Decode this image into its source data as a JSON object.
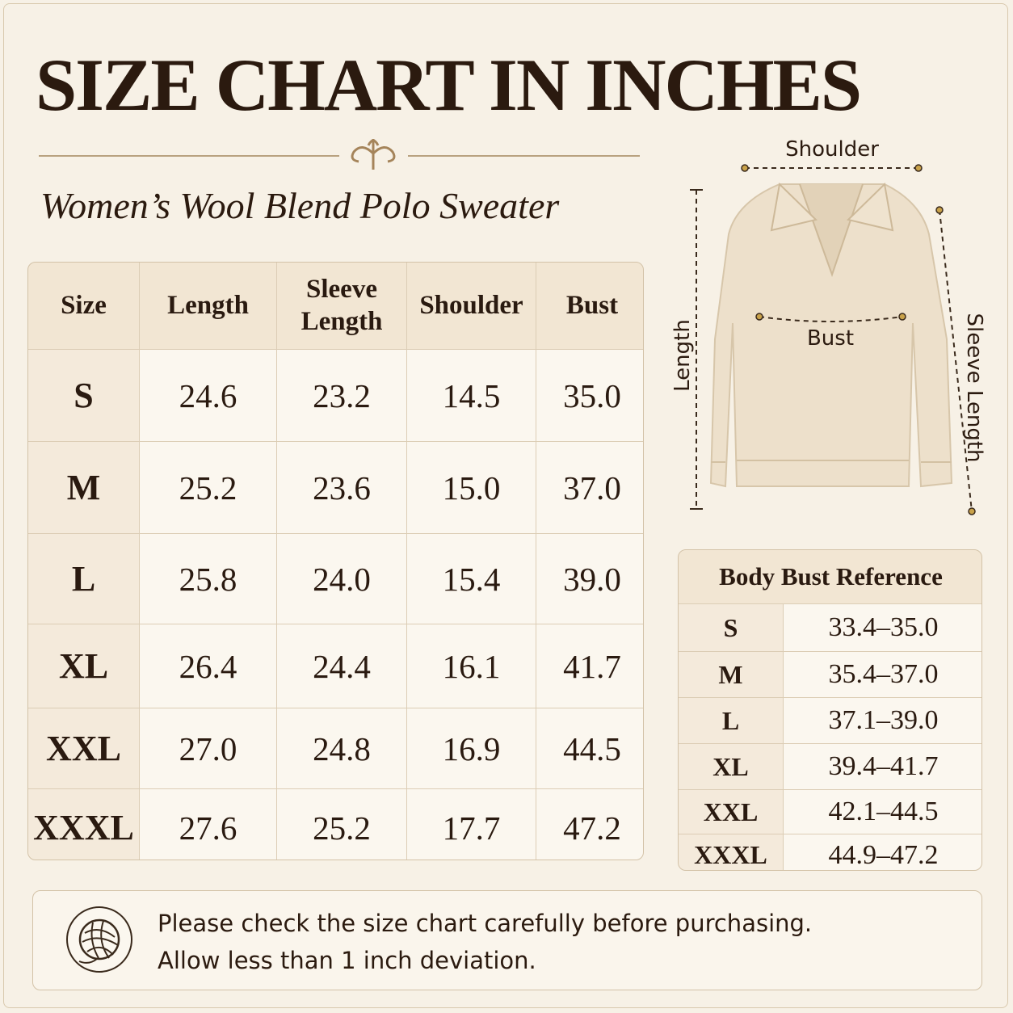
{
  "header": {
    "title": "SIZE CHART IN INCHES",
    "subtitle": "Women’s Wool Blend Polo Sweater"
  },
  "size_table": {
    "columns": [
      "Size",
      "Length",
      "Sleeve Length",
      "Shoulder",
      "Bust"
    ],
    "rows": [
      [
        "S",
        "24.6",
        "23.2",
        "14.5",
        "35.0"
      ],
      [
        "M",
        "25.2",
        "23.6",
        "15.0",
        "37.0"
      ],
      [
        "L",
        "25.8",
        "24.0",
        "15.4",
        "39.0"
      ],
      [
        "XL",
        "26.4",
        "24.4",
        "16.1",
        "41.7"
      ],
      [
        "XXL",
        "27.0",
        "24.8",
        "16.9",
        "44.5"
      ],
      [
        "XXXL",
        "27.6",
        "25.2",
        "17.7",
        "47.2"
      ]
    ]
  },
  "diagram": {
    "labels": {
      "shoulder": "Shoulder",
      "bust": "Bust",
      "length": "Length",
      "sleeve_length": "Sleeve Length"
    }
  },
  "bust_reference": {
    "title": "Body Bust Reference",
    "rows": [
      [
        "S",
        "33.4–35.0"
      ],
      [
        "M",
        "35.4–37.0"
      ],
      [
        "L",
        "37.1–39.0"
      ],
      [
        "XL",
        "39.4–41.7"
      ],
      [
        "XXL",
        "42.1–44.5"
      ],
      [
        "XXXL",
        "44.9–47.2"
      ]
    ]
  },
  "note": {
    "lines": [
      "Please check the size chart carefully before purchasing.",
      "Allow less than 1 inch deviation."
    ]
  }
}
